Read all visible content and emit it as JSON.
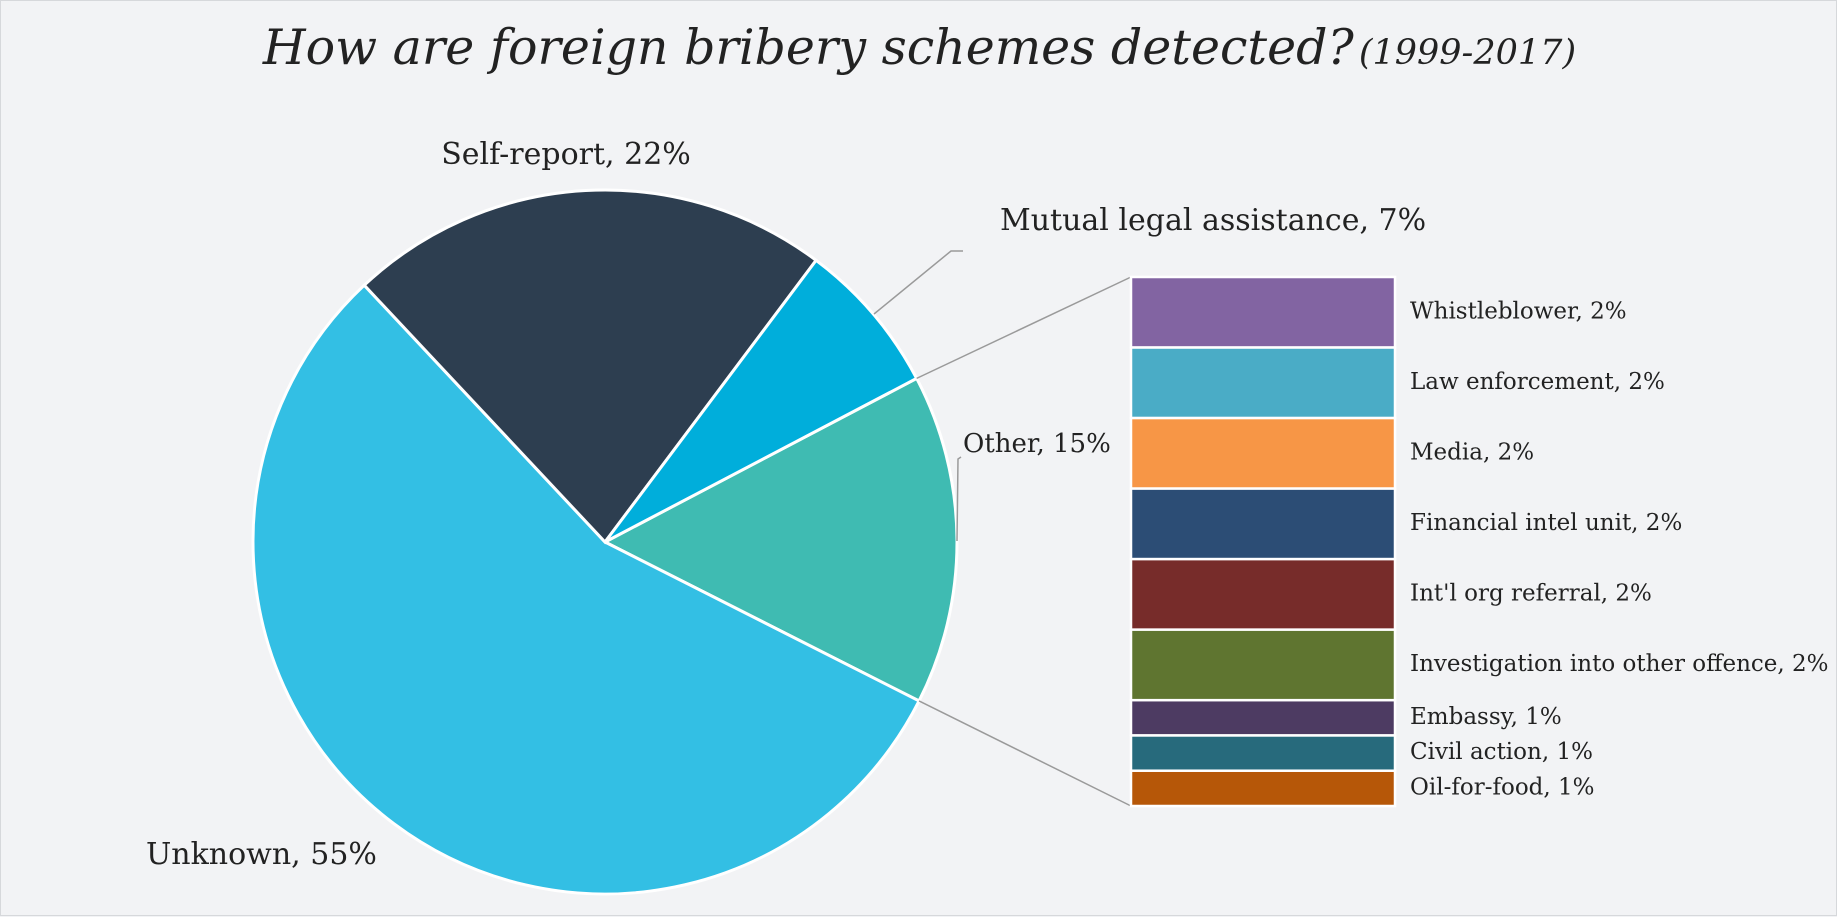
{
  "chart_data": {
    "type": "pie",
    "title": "How are foreign bribery schemes detected?",
    "subtitle": "(1999-2017)",
    "slices": [
      {
        "label": "Other, 15%",
        "name": "Other",
        "value": 15,
        "color": "#3fbbb2"
      },
      {
        "label": "Unknown, 55%",
        "name": "Unknown",
        "value": 55,
        "color": "#33bfe4"
      },
      {
        "label": "Self-report, 22%",
        "name": "Self-report",
        "value": 22,
        "color": "#2d3e50"
      },
      {
        "label": "Mutual legal assistance, 7%",
        "name": "Mutual legal assistance",
        "value": 7,
        "color": "#00aedb"
      }
    ],
    "breakdown_of": "Other",
    "breakdown": [
      {
        "label": "Whistleblower, 2%",
        "name": "Whistleblower",
        "value": 2,
        "color": "#8264a2"
      },
      {
        "label": "Law enforcement, 2%",
        "name": "Law enforcement",
        "value": 2,
        "color": "#4aacc6"
      },
      {
        "label": "Media, 2%",
        "name": "Media",
        "value": 2,
        "color": "#f79646"
      },
      {
        "label": "Financial intel unit, 2%",
        "name": "Financial intel unit",
        "value": 2,
        "color": "#2c4d75"
      },
      {
        "label": "Int'l org referral, 2%",
        "name": "Int'l org referral",
        "value": 2,
        "color": "#772c2a"
      },
      {
        "label": "Investigation into other offence, 2%",
        "name": "Investigation into other offence",
        "value": 2,
        "color": "#5f7530"
      },
      {
        "label": "Embassy, 1%",
        "name": "Embassy",
        "value": 1,
        "color": "#4d3b62"
      },
      {
        "label": "Civil action, 1%",
        "name": "Civil action",
        "value": 1,
        "color": "#276a7c"
      },
      {
        "label": "Oil-for-food, 1%",
        "name": "Oil-for-food",
        "value": 1,
        "color": "#b65708"
      }
    ]
  }
}
